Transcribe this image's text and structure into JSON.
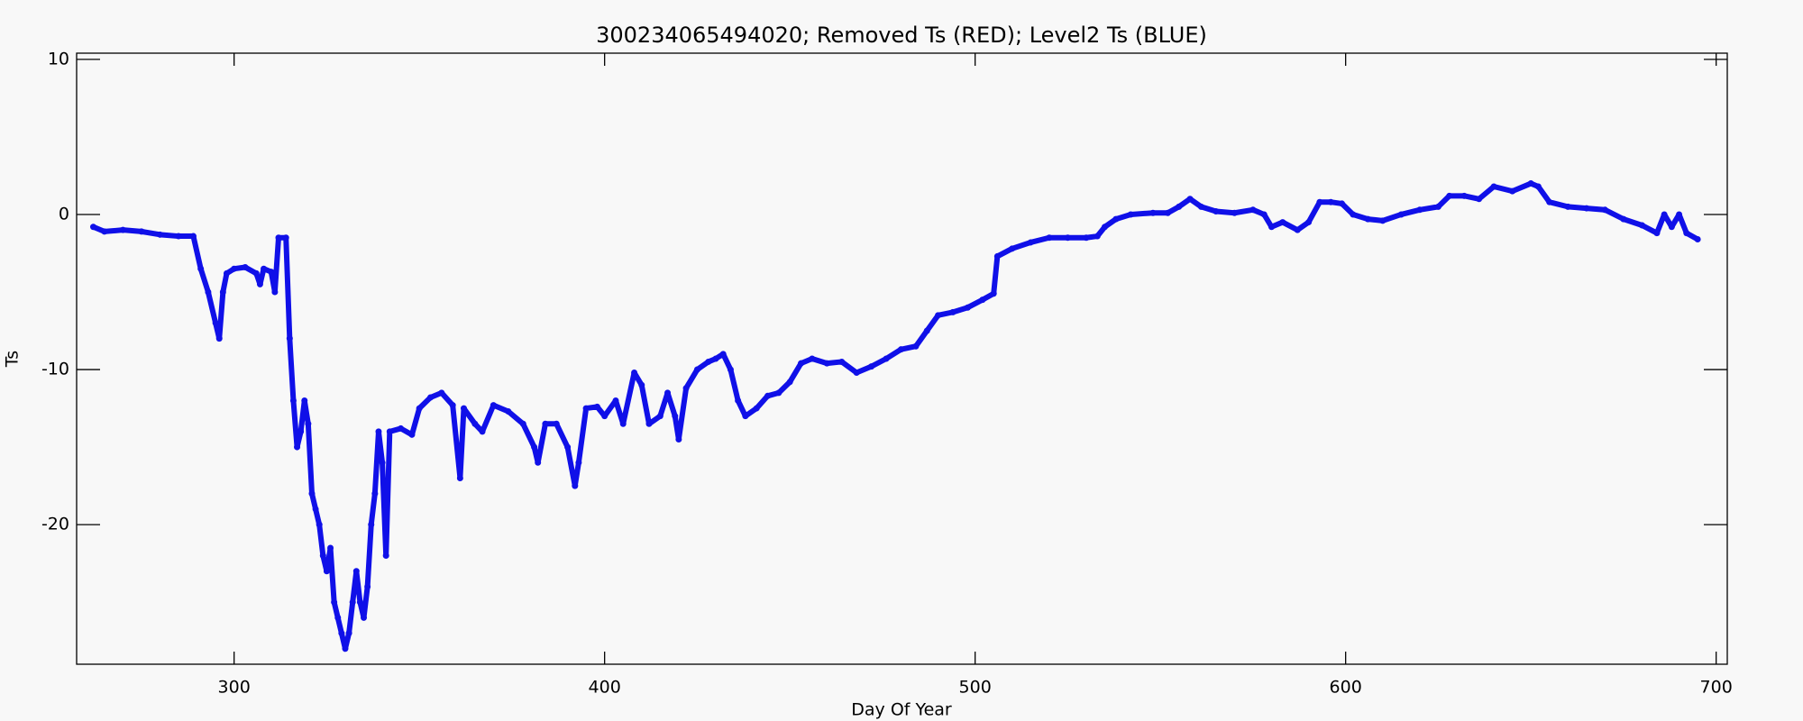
{
  "chart_data": {
    "type": "scatter",
    "title": "300234065494020; Removed Ts (RED); Level2 Ts (BLUE)",
    "x_label": "Day Of Year",
    "y_label": "Ts",
    "xlim": [
      257.5,
      703
    ],
    "ylim": [
      -29,
      10.4
    ],
    "xticks": [
      300,
      400,
      500,
      600,
      700
    ],
    "yticks": [
      -20,
      -10,
      0,
      10
    ],
    "color": "#1010e8",
    "x": [
      262,
      265,
      270,
      275,
      280,
      285,
      289,
      291,
      293,
      295,
      296,
      297,
      298,
      300,
      303,
      306,
      307,
      308,
      310,
      311,
      312,
      314,
      315,
      316,
      317,
      318,
      319,
      320,
      321,
      322,
      323,
      324,
      325,
      326,
      327,
      328,
      329,
      330,
      331,
      332,
      333,
      334,
      335,
      336,
      337,
      338,
      339,
      340,
      341,
      342,
      345,
      348,
      350,
      353,
      356,
      359,
      361,
      362,
      365,
      367,
      370,
      374,
      378,
      381,
      382,
      384,
      387,
      390,
      392,
      393,
      395,
      398,
      400,
      403,
      405,
      408,
      410,
      412,
      415,
      417,
      419,
      420,
      422,
      425,
      428,
      430,
      432,
      434,
      436,
      438,
      441,
      444,
      447,
      450,
      453,
      456,
      460,
      464,
      468,
      472,
      476,
      480,
      484,
      487,
      490,
      494,
      498,
      502,
      505,
      506,
      510,
      515,
      520,
      525,
      530,
      533,
      535,
      538,
      542,
      548,
      552,
      555,
      558,
      561,
      565,
      570,
      575,
      578,
      580,
      583,
      587,
      590,
      593,
      596,
      599,
      602,
      606,
      610,
      615,
      620,
      625,
      628,
      632,
      636,
      640,
      645,
      650,
      652,
      655,
      660,
      665,
      670,
      675,
      680,
      684,
      686,
      688,
      690,
      692,
      695
    ],
    "values": [
      -0.8,
      -1.1,
      -1.0,
      -1.1,
      -1.3,
      -1.4,
      -1.4,
      -3.5,
      -5,
      -7,
      -8,
      -5,
      -3.8,
      -3.5,
      -3.4,
      -3.8,
      -4.5,
      -3.5,
      -3.7,
      -5,
      -1.5,
      -1.5,
      -8,
      -12,
      -15,
      -14,
      -12,
      -13.5,
      -18,
      -19,
      -20,
      -22,
      -23,
      -21.5,
      -25,
      -26,
      -27,
      -28,
      -27,
      -25,
      -23,
      -25,
      -26,
      -24,
      -20,
      -18,
      -14,
      -16,
      -22,
      -14,
      -13.8,
      -14.2,
      -12.5,
      -11.8,
      -11.5,
      -12.3,
      -17,
      -12.5,
      -13.5,
      -14,
      -12.3,
      -12.7,
      -13.5,
      -15,
      -16,
      -13.5,
      -13.5,
      -15,
      -17.5,
      -16,
      -12.5,
      -12.4,
      -13,
      -12,
      -13.5,
      -10.2,
      -11,
      -13.5,
      -13,
      -11.5,
      -13,
      -14.5,
      -11.2,
      -10,
      -9.5,
      -9.3,
      -9,
      -10,
      -12,
      -13,
      -12.5,
      -11.7,
      -11.5,
      -10.8,
      -9.6,
      -9.3,
      -9.6,
      -9.5,
      -10.2,
      -9.8,
      -9.3,
      -8.7,
      -8.5,
      -7.5,
      -6.5,
      -6.3,
      -6.0,
      -5.5,
      -5.1,
      -2.7,
      -2.2,
      -1.8,
      -1.5,
      -1.5,
      -1.5,
      -1.4,
      -0.8,
      -0.3,
      0,
      0.1,
      0.1,
      0.5,
      1.0,
      0.5,
      0.2,
      0.1,
      0.3,
      0,
      -0.8,
      -0.5,
      -1.0,
      -0.5,
      0.8,
      0.8,
      0.7,
      0,
      -0.3,
      -0.4,
      0,
      0.3,
      0.5,
      1.2,
      1.2,
      1.0,
      1.8,
      1.5,
      2.0,
      1.8,
      0.8,
      0.5,
      0.4,
      0.3,
      -0.3,
      -0.7,
      -1.2,
      0,
      -0.8,
      0,
      -1.2,
      -1.6
    ]
  }
}
